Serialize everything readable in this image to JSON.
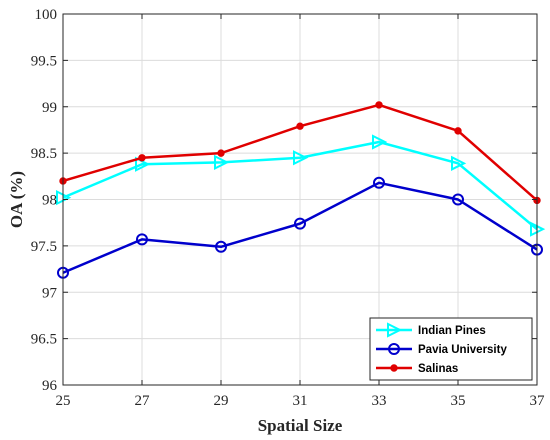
{
  "chart_data": {
    "type": "line",
    "title": "",
    "xlabel": "Spatial Size",
    "ylabel": "OA (%)",
    "x": [
      25,
      27,
      29,
      31,
      33,
      35,
      37
    ],
    "xlim": [
      25,
      37
    ],
    "ylim": [
      96,
      100
    ],
    "xticks": [
      "25",
      "27",
      "29",
      "31",
      "33",
      "35",
      "37"
    ],
    "yticks": [
      "96",
      "96.5",
      "97",
      "97.5",
      "98",
      "98.5",
      "99",
      "99.5",
      "100"
    ],
    "grid": true,
    "legend_position": "bottom-right",
    "series": [
      {
        "name": "Indian Pines",
        "color": "#00ffff",
        "marker": "triangle-right",
        "values": [
          98.02,
          98.38,
          98.4,
          98.45,
          98.62,
          98.39,
          97.68
        ]
      },
      {
        "name": "Pavia University",
        "color": "#0000cc",
        "marker": "circle",
        "values": [
          97.21,
          97.57,
          97.49,
          97.74,
          98.18,
          98.0,
          97.46
        ]
      },
      {
        "name": "Salinas",
        "color": "#e00000",
        "marker": "dot",
        "values": [
          98.2,
          98.45,
          98.5,
          98.79,
          99.02,
          98.74,
          97.99
        ]
      }
    ]
  }
}
